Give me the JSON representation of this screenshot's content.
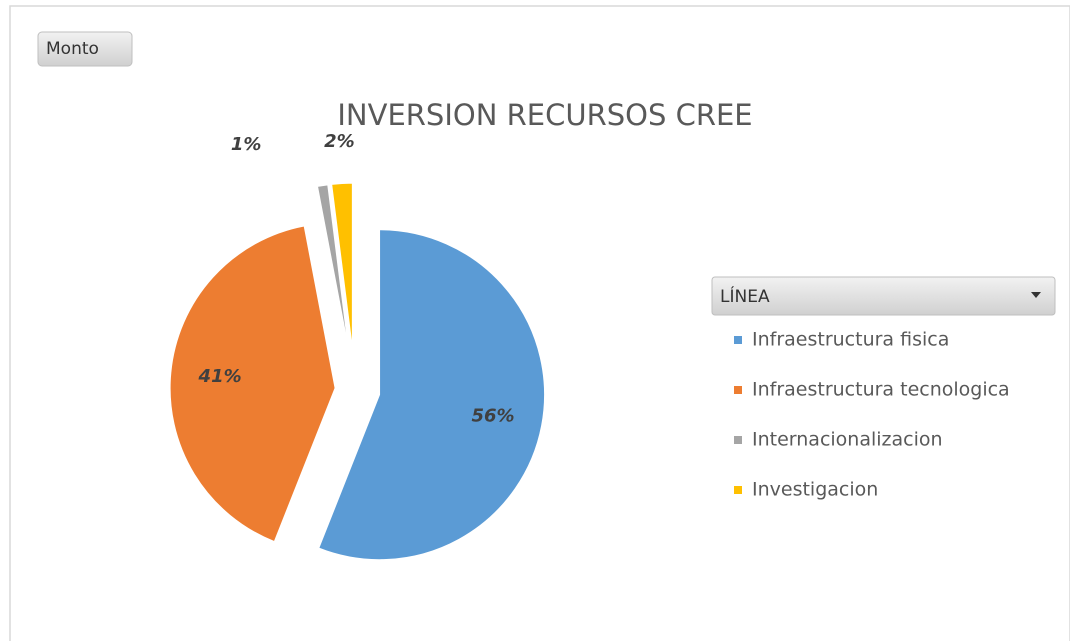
{
  "chart_data": {
    "type": "pie",
    "field_button": "Monto",
    "title": "INVERSION RECURSOS CREE",
    "legend_title": "LÍNEA",
    "categories": [
      "Infraestructura fisica",
      "Infraestructura tecnologica",
      "Internacionalizacion",
      "Investigacion"
    ],
    "values": [
      56,
      41,
      1,
      2
    ],
    "value_labels": [
      "56%",
      "41%",
      "1%",
      "2%"
    ],
    "colors": [
      "#5b9bd5",
      "#ed7d31",
      "#a5a5a5",
      "#ffc000"
    ],
    "legend": "right"
  }
}
